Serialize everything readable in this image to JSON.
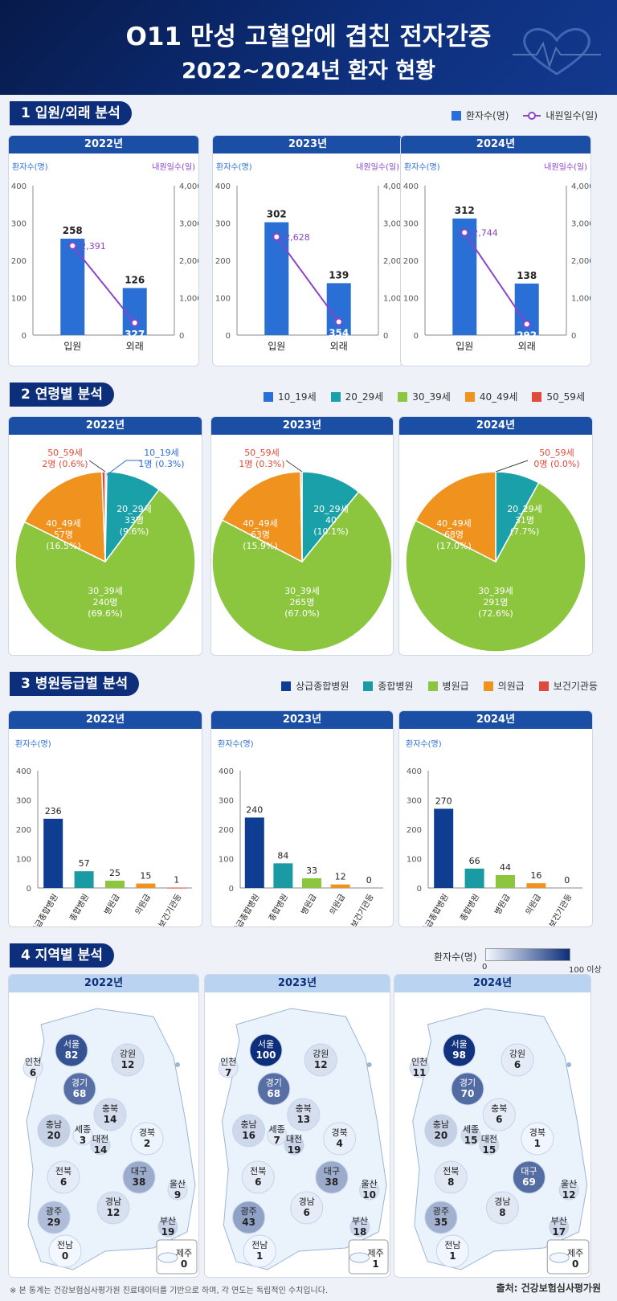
{
  "header": {
    "title1": "O11 만성 고혈압에 겹친 전자간증",
    "title2": "2022~2024년 환자 현황"
  },
  "sections": {
    "s1": "1  입원/외래 분석",
    "s2": "2  연령별 분석",
    "s3": "3  병원등급별 분석",
    "s4": "4  지역별 분석"
  },
  "legend1": [
    {
      "label": "환자수(명)",
      "color": "#2a6fd6",
      "kind": "bar"
    },
    {
      "label": "내원일수(일)",
      "color": "#8b44c9",
      "kind": "line"
    }
  ],
  "legend2": [
    {
      "label": "10_19세",
      "color": "#2a6fd6"
    },
    {
      "label": "20_29세",
      "color": "#1aa0a8"
    },
    {
      "label": "30_39세",
      "color": "#8cc63f"
    },
    {
      "label": "40_49세",
      "color": "#f0921e"
    },
    {
      "label": "50_59세",
      "color": "#e04a3a"
    }
  ],
  "legend3": [
    {
      "label": "상급종합병원",
      "color": "#0f3d91"
    },
    {
      "label": "종합병원",
      "color": "#1a9aa3"
    },
    {
      "label": "병원급",
      "color": "#8cc63f"
    },
    {
      "label": "의원급",
      "color": "#f0921e"
    },
    {
      "label": "보건기관등",
      "color": "#e04a3a"
    }
  ],
  "map_scale": {
    "label": "환자수(명)",
    "min": "0",
    "max": "100 이상"
  },
  "footer": {
    "note": "※ 본 통계는 건강보험심사평가원 진료데이터를 기반으로 하며, 각 연도는 독립적인 수치입니다.",
    "source": "출처: 건강보험심사평가원"
  },
  "chart_data": [
    {
      "type": "bar",
      "section": "inout",
      "years": [
        "2022년",
        "2023년",
        "2024년"
      ],
      "categories": [
        "입원",
        "외래"
      ],
      "ylabel": "환자수(명)",
      "y2label": "내원일수(일)",
      "ylim": [
        0,
        400
      ],
      "y2lim": [
        0,
        4000
      ],
      "yticks": [
        "0",
        "100",
        "200",
        "300",
        "400"
      ],
      "y2ticks": [
        "0",
        "1,000",
        "2,000",
        "3,000",
        "4,000"
      ],
      "series": [
        {
          "name": "환자수(명)",
          "kind": "bar",
          "values": [
            [
              258,
              126
            ],
            [
              302,
              139
            ],
            [
              312,
              138
            ]
          ]
        },
        {
          "name": "내원일수(일)",
          "kind": "line",
          "values": [
            [
              2391,
              327
            ],
            [
              2628,
              354
            ],
            [
              2744,
              292
            ]
          ]
        }
      ]
    },
    {
      "type": "pie",
      "section": "age",
      "years": [
        "2022년",
        "2023년",
        "2024년"
      ],
      "categories": [
        "10_19세",
        "20_29세",
        "30_39세",
        "40_49세",
        "50_59세"
      ],
      "values": [
        [
          1,
          33,
          240,
          57,
          2
        ],
        [
          0,
          40,
          265,
          63,
          1
        ],
        [
          0,
          31,
          291,
          68,
          0
        ]
      ],
      "labels": [
        [
          "1명 (0.3%)",
          "33명\n(9.6%)",
          "240명\n(69.6%)",
          "57명\n(16.5%)",
          "2명 (0.6%)"
        ],
        [
          "",
          "40\n(10.1%)",
          "265명\n(67.0%)",
          "63명\n(15.9%)",
          "1명 (0.3%)"
        ],
        [
          "",
          "31명\n(7.7%)",
          "291명\n(72.6%)",
          "68명\n(17.0%)",
          "0명 (0.0%)"
        ]
      ]
    },
    {
      "type": "bar",
      "section": "grade",
      "years": [
        "2022년",
        "2023년",
        "2024년"
      ],
      "categories": [
        "상급종합병원",
        "종합병원",
        "병원급",
        "의원급",
        "보건기관등"
      ],
      "ylabel": "환자수(명)",
      "ylim": [
        0,
        400
      ],
      "yticks": [
        "0",
        "100",
        "200",
        "300",
        "400"
      ],
      "values": [
        [
          236,
          57,
          25,
          15,
          1
        ],
        [
          240,
          84,
          33,
          12,
          0
        ],
        [
          270,
          66,
          44,
          16,
          0
        ]
      ]
    },
    {
      "type": "map",
      "section": "region",
      "years": [
        "2022년",
        "2023년",
        "2024년"
      ],
      "regions": [
        "서울",
        "인천",
        "경기",
        "강원",
        "충북",
        "충남",
        "세종",
        "대전",
        "경북",
        "전북",
        "대구",
        "울산",
        "경남",
        "부산",
        "광주",
        "전남",
        "제주"
      ],
      "values": [
        [
          82,
          6,
          68,
          12,
          14,
          20,
          3,
          14,
          2,
          6,
          38,
          9,
          12,
          19,
          29,
          0,
          0
        ],
        [
          100,
          7,
          68,
          12,
          13,
          16,
          7,
          19,
          4,
          6,
          38,
          10,
          6,
          18,
          43,
          1,
          1
        ],
        [
          98,
          11,
          70,
          6,
          6,
          20,
          15,
          15,
          1,
          8,
          69,
          12,
          8,
          17,
          35,
          1,
          0
        ]
      ]
    }
  ]
}
